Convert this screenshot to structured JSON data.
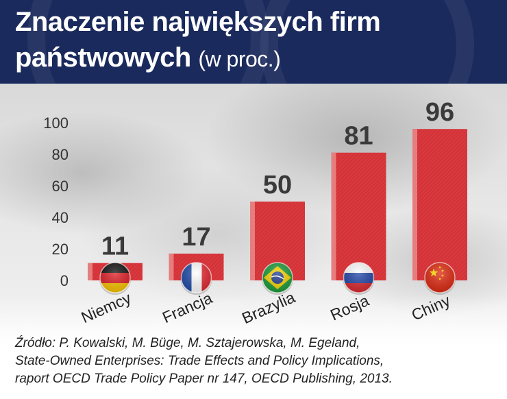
{
  "header": {
    "title_line1": "Znaczenie największych firm",
    "title_line2": "państwowych",
    "title_unit": "(w proc.)"
  },
  "chart_data": {
    "type": "bar",
    "categories": [
      "Niemcy",
      "Francja",
      "Brazylia",
      "Rosja",
      "Chiny"
    ],
    "values": [
      11,
      17,
      50,
      81,
      96
    ],
    "value_labels": [
      "11",
      "17",
      "50",
      "81",
      "96"
    ],
    "ylim": [
      0,
      100
    ],
    "yticks": [
      0,
      20,
      40,
      60,
      80,
      100
    ],
    "ytick_labels": [
      "0",
      "20",
      "40",
      "60",
      "80",
      "100"
    ],
    "grid": false,
    "category_icons": [
      "germany-flag-icon",
      "france-flag-icon",
      "brazil-flag-icon",
      "russia-flag-icon",
      "china-flag-icon"
    ],
    "bar_color": "#d9383d",
    "bar_highlight_color": "#e98b8a"
  },
  "source": {
    "line1": "Źródło: P. Kowalski, M. Büge, M. Sztajerowska, M. Egeland,",
    "line2": "State-Owned Enterprises: Trade Effects and Policy Implications,",
    "line3": "raport OECD Trade Policy Paper nr 147, OECD Publishing, 2013."
  },
  "colors": {
    "header_bg": "#1a2a5c",
    "title_text": "#ffffff",
    "value_label_text": "#3a3a3a",
    "axis_text": "#333333"
  }
}
